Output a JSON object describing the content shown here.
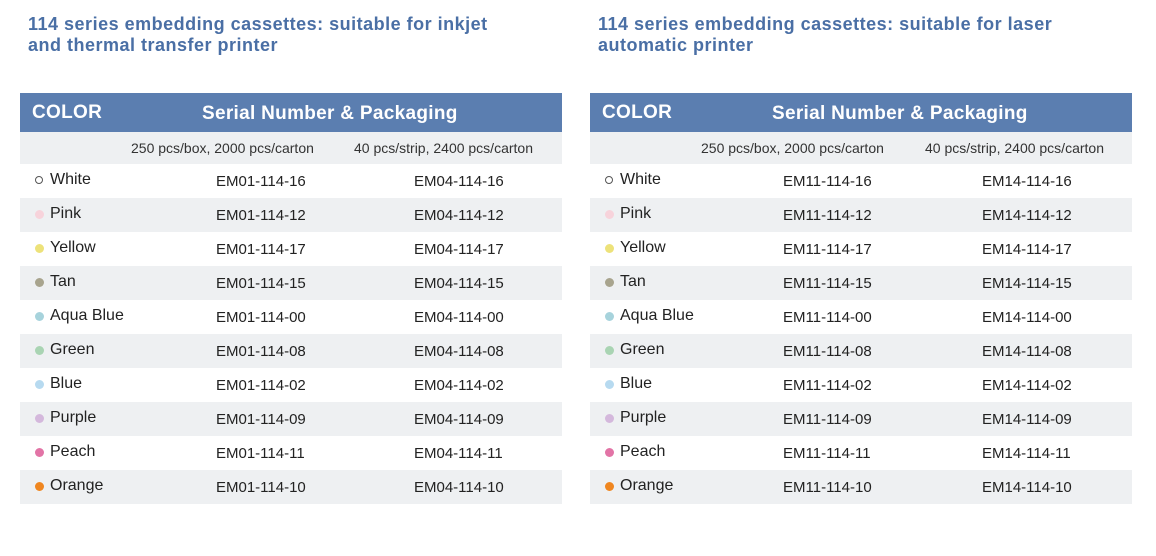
{
  "sections": [
    {
      "heading": "114 series embedding cassettes: suitable for inkjet\nand thermal transfer printer",
      "header": {
        "color": "COLOR",
        "serial": "Serial Number & Packaging"
      },
      "packaging": [
        "250 pcs/box, 2000 pcs/carton",
        "40 pcs/strip, 2400 pcs/carton"
      ],
      "rows": [
        {
          "name": "White",
          "dot": "#ffffff",
          "codes": [
            "EM01-114-16",
            "EM04-114-16"
          ]
        },
        {
          "name": "Pink",
          "dot": "#f7d3db",
          "codes": [
            "EM01-114-12",
            "EM04-114-12"
          ]
        },
        {
          "name": "Yellow",
          "dot": "#ede27a",
          "codes": [
            "EM01-114-17",
            "EM04-114-17"
          ]
        },
        {
          "name": "Tan",
          "dot": "#a8a48e",
          "codes": [
            "EM01-114-15",
            "EM04-114-15"
          ]
        },
        {
          "name": "Aqua Blue",
          "dot": "#a7d3dc",
          "codes": [
            "EM01-114-00",
            "EM04-114-00"
          ]
        },
        {
          "name": "Green",
          "dot": "#a9d4b3",
          "codes": [
            "EM01-114-08",
            "EM04-114-08"
          ]
        },
        {
          "name": "Blue",
          "dot": "#b7daf0",
          "codes": [
            "EM01-114-02",
            "EM04-114-02"
          ]
        },
        {
          "name": "Purple",
          "dot": "#d4b8dc",
          "codes": [
            "EM01-114-09",
            "EM04-114-09"
          ]
        },
        {
          "name": "Peach",
          "dot": "#e274a6",
          "codes": [
            "EM01-114-11",
            "EM04-114-11"
          ]
        },
        {
          "name": "Orange",
          "dot": "#ef8620",
          "codes": [
            "EM01-114-10",
            "EM04-114-10"
          ]
        }
      ]
    },
    {
      "heading": "114 series embedding cassettes: suitable for laser\nautomatic printer",
      "header": {
        "color": "COLOR",
        "serial": "Serial Number & Packaging"
      },
      "packaging": [
        "250 pcs/box, 2000 pcs/carton",
        "40 pcs/strip, 2400 pcs/carton"
      ],
      "rows": [
        {
          "name": "White",
          "dot": "#ffffff",
          "codes": [
            "EM11-114-16",
            "EM14-114-16"
          ]
        },
        {
          "name": "Pink",
          "dot": "#f7d3db",
          "codes": [
            "EM11-114-12",
            "EM14-114-12"
          ]
        },
        {
          "name": "Yellow",
          "dot": "#ede27a",
          "codes": [
            "EM11-114-17",
            "EM14-114-17"
          ]
        },
        {
          "name": "Tan",
          "dot": "#a8a48e",
          "codes": [
            "EM11-114-15",
            "EM14-114-15"
          ]
        },
        {
          "name": "Aqua Blue",
          "dot": "#a7d3dc",
          "codes": [
            "EM11-114-00",
            "EM14-114-00"
          ]
        },
        {
          "name": "Green",
          "dot": "#a9d4b3",
          "codes": [
            "EM11-114-08",
            "EM14-114-08"
          ]
        },
        {
          "name": "Blue",
          "dot": "#b7daf0",
          "codes": [
            "EM11-114-02",
            "EM14-114-02"
          ]
        },
        {
          "name": "Purple",
          "dot": "#d4b8dc",
          "codes": [
            "EM11-114-09",
            "EM14-114-09"
          ]
        },
        {
          "name": "Peach",
          "dot": "#e274a6",
          "codes": [
            "EM11-114-11",
            "EM14-114-11"
          ]
        },
        {
          "name": "Orange",
          "dot": "#ef8620",
          "codes": [
            "EM11-114-10",
            "EM14-114-10"
          ]
        }
      ]
    }
  ]
}
